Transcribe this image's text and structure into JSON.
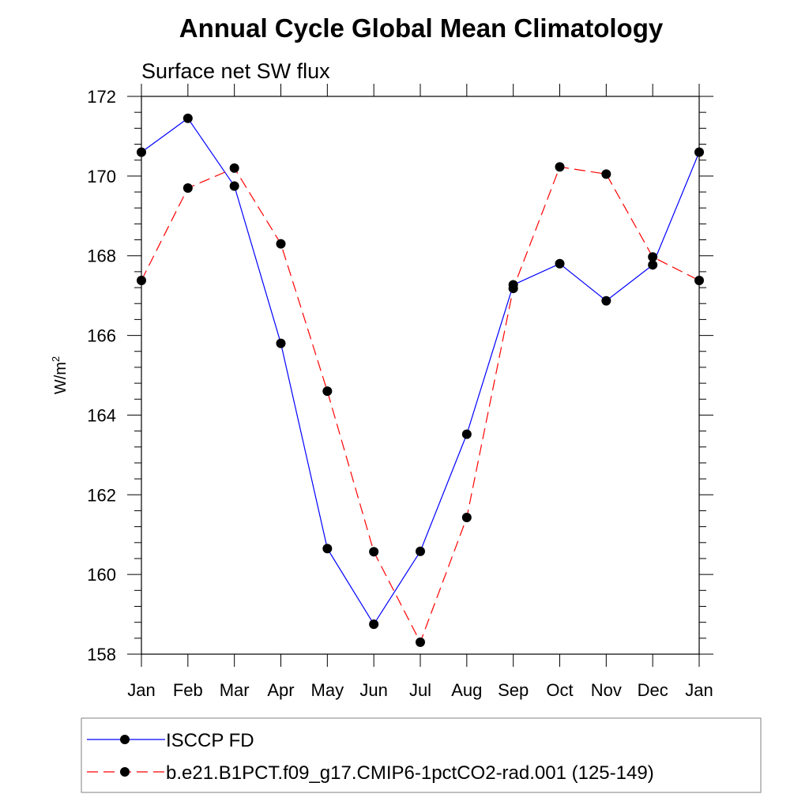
{
  "chart_data": {
    "type": "line",
    "title": "Annual Cycle Global Mean Climatology",
    "subtitle": "Surface net SW flux",
    "ylabel_base": "W/m",
    "ylabel_sup": "2",
    "categories": [
      "Jan",
      "Feb",
      "Mar",
      "Apr",
      "May",
      "Jun",
      "Jul",
      "Aug",
      "Sep",
      "Oct",
      "Nov",
      "Dec",
      "Jan"
    ],
    "ylim": [
      158,
      172
    ],
    "yticks": [
      158,
      160,
      162,
      164,
      166,
      168,
      170,
      172
    ],
    "grid": false,
    "legend_position": "bottom",
    "series": [
      {
        "name": "ISCCP FD",
        "color": "#0000ff",
        "dash": "solid",
        "values": [
          170.6,
          171.45,
          169.75,
          165.8,
          160.65,
          158.75,
          160.58,
          163.52,
          167.27,
          167.8,
          166.87,
          167.77,
          170.6
        ]
      },
      {
        "name": "b.e21.B1PCT.f09_g17.CMIP6-1pctCO2-rad.001 (125-149)",
        "color": "#ff0000",
        "dash": "dashed",
        "values": [
          167.38,
          169.7,
          170.2,
          168.3,
          164.6,
          160.57,
          158.3,
          161.43,
          167.18,
          170.23,
          170.05,
          167.97,
          167.38
        ]
      }
    ]
  }
}
